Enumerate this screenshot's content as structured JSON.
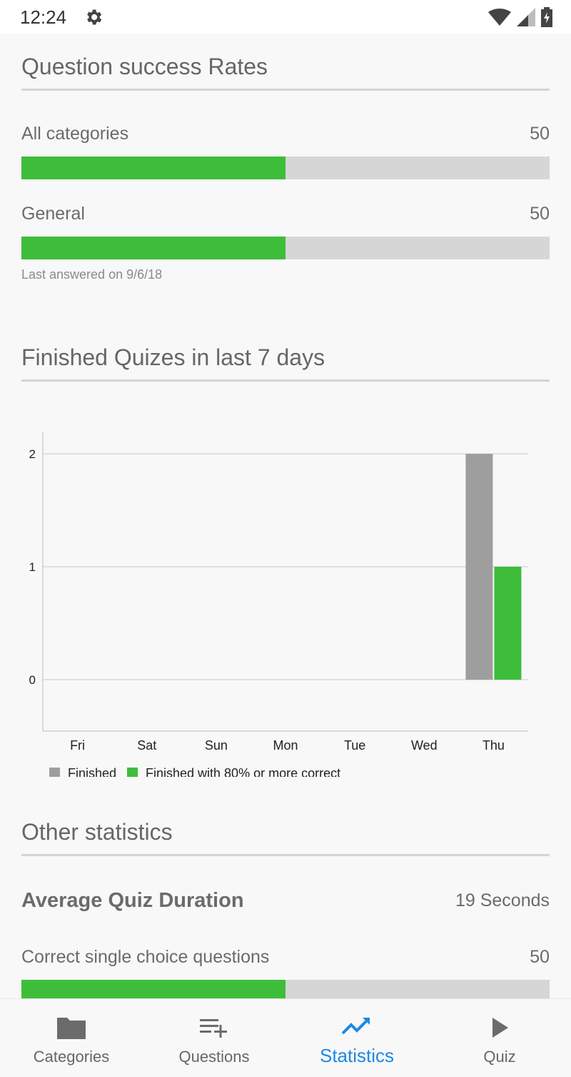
{
  "status_bar": {
    "time": "12:24"
  },
  "success_rates": {
    "title": "Question success Rates",
    "rows": [
      {
        "label": "All categories",
        "value": "50",
        "fraction": 0.5
      },
      {
        "label": "General",
        "value": "50",
        "fraction": 0.5
      }
    ],
    "last_answered": "Last answered on 9/6/18"
  },
  "finished_quizzes": {
    "title": "Finished Quizes in last 7 days"
  },
  "chart_data": {
    "type": "bar",
    "categories": [
      "Fri",
      "Sat",
      "Sun",
      "Mon",
      "Tue",
      "Wed",
      "Thu"
    ],
    "series": [
      {
        "name": "Finished",
        "color": "#9e9e9e",
        "values": [
          0,
          0,
          0,
          0,
          0,
          0,
          2
        ]
      },
      {
        "name": "Finished with 80% or more correct",
        "color": "#3ebd3a",
        "values": [
          0,
          0,
          0,
          0,
          0,
          0,
          1
        ]
      }
    ],
    "yticks": [
      "0",
      "1",
      "2"
    ],
    "ylim": [
      0,
      2
    ],
    "grid": true,
    "legend": "bottom-left"
  },
  "other_stats": {
    "title": "Other statistics",
    "avg_label": "Average Quiz Duration",
    "avg_value": "19 Seconds",
    "single_choice": {
      "label": "Correct single choice questions",
      "value": "50",
      "fraction": 0.5
    }
  },
  "nav": {
    "items": [
      {
        "label": "Categories",
        "icon": "folder-icon",
        "active": false
      },
      {
        "label": "Questions",
        "icon": "playlist-add-icon",
        "active": false
      },
      {
        "label": "Statistics",
        "icon": "trending-up-icon",
        "active": true
      },
      {
        "label": "Quiz",
        "icon": "play-icon",
        "active": false
      }
    ]
  },
  "colors": {
    "accent": "#1e88e5",
    "success": "#3ebd3a",
    "finished": "#9e9e9e"
  }
}
